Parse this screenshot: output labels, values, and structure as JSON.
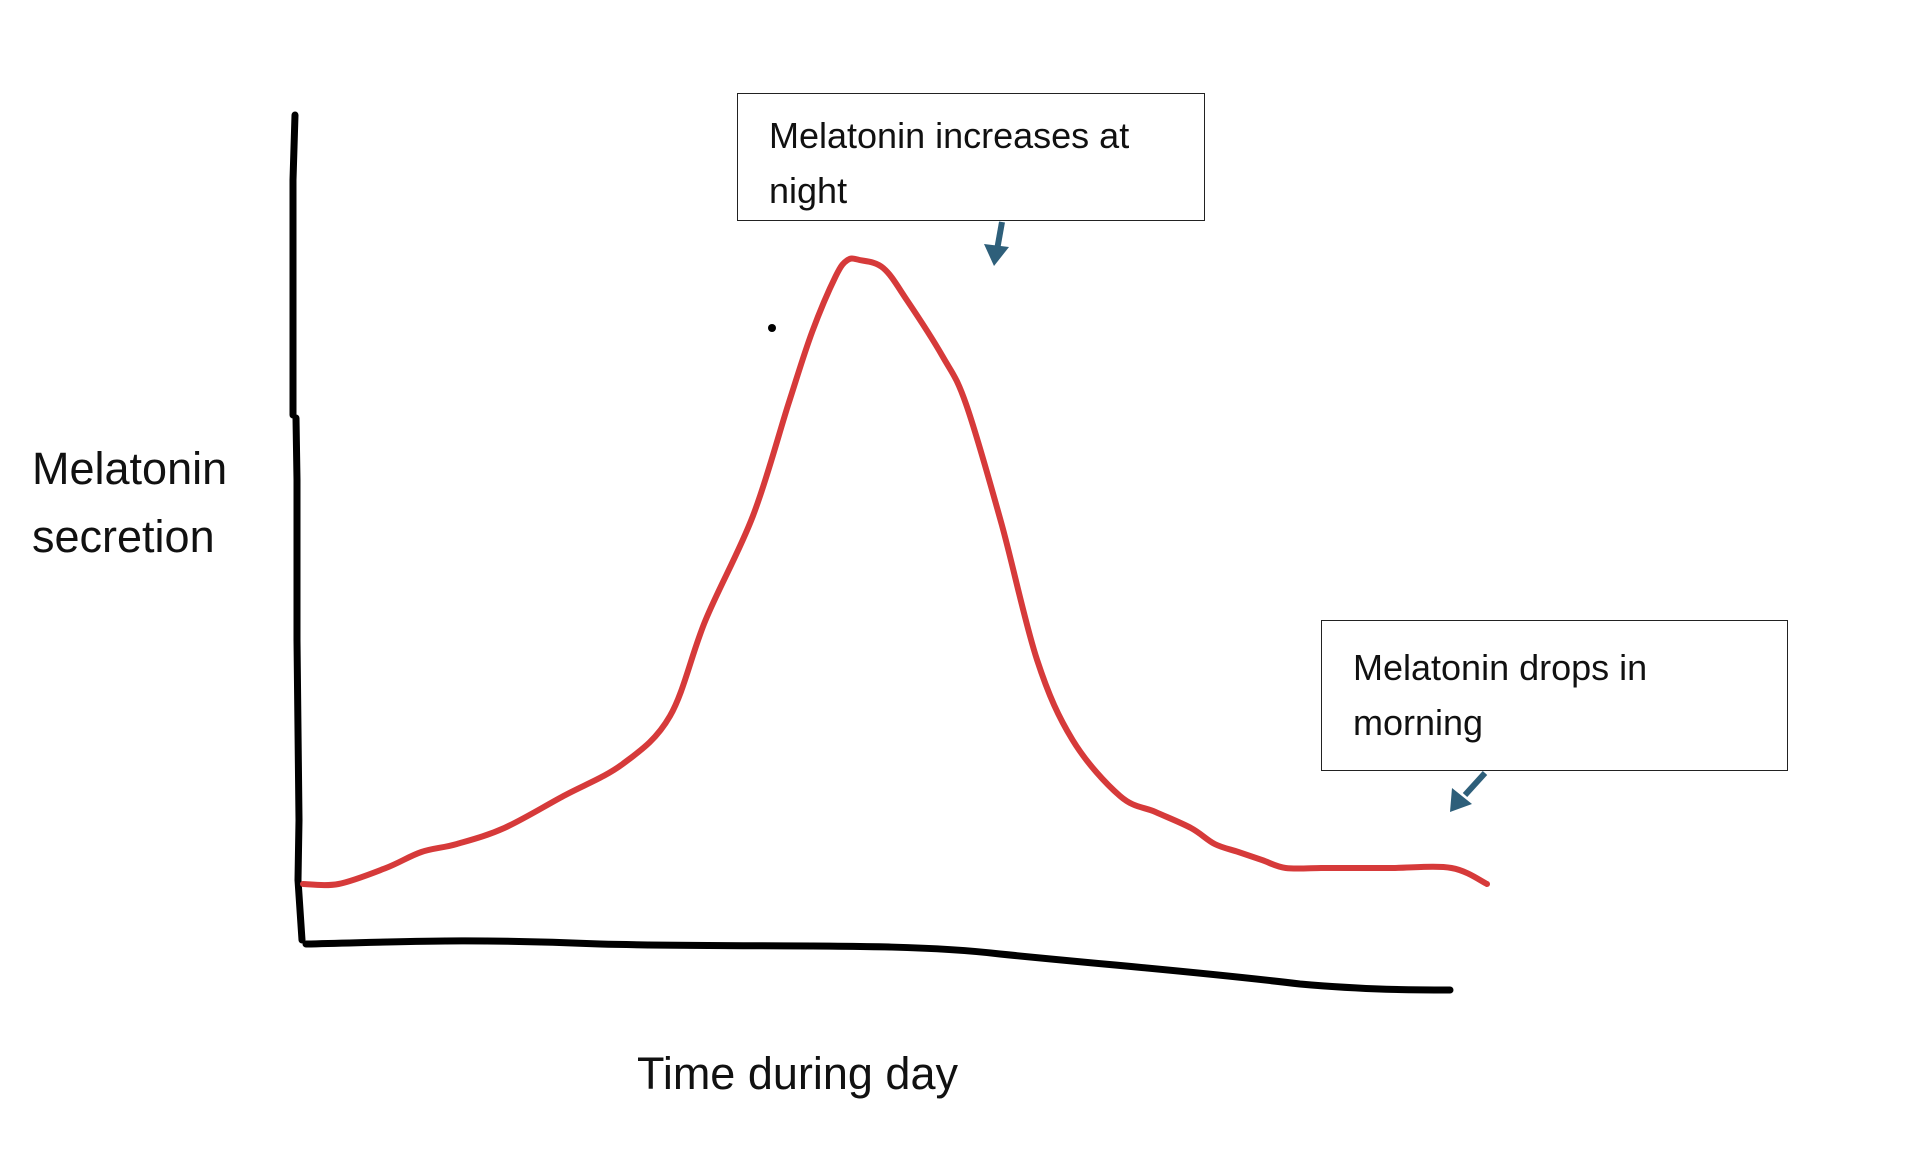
{
  "chart_data": {
    "type": "line",
    "title": "",
    "xlabel": "Time during day",
    "ylabel": "Melatonin secretion",
    "xlim": [
      0,
      100
    ],
    "ylim": [
      0,
      100
    ],
    "grid": false,
    "legend": "none",
    "series": [
      {
        "color": "#d63a3a",
        "x": [
          0,
          3,
          7,
          10,
          13,
          17,
          22,
          27,
          31,
          34,
          38,
          41,
          43,
          45,
          46,
          47,
          49,
          51,
          54,
          56,
          59,
          62,
          65,
          69,
          72,
          75,
          77,
          79,
          81,
          83,
          86,
          88,
          92,
          97,
          100
        ],
        "y": [
          15,
          15,
          17,
          19,
          20,
          22,
          26,
          30,
          36,
          48,
          61,
          75,
          84,
          91,
          93,
          93,
          92,
          88,
          81,
          75,
          60,
          43,
          33,
          26,
          24,
          22,
          20,
          19,
          18,
          17,
          17,
          17,
          17,
          17,
          15
        ]
      }
    ]
  },
  "annotations": {
    "night": "Melatonin increases at night",
    "morning": "Melatonin drops in morning"
  },
  "colors": {
    "curve": "#d63a3a",
    "axes": "#000000",
    "arrow": "#2e5f7a"
  }
}
